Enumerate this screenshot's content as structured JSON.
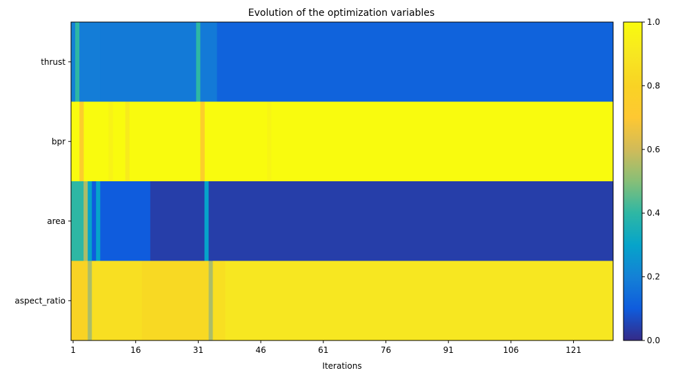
{
  "chart_data": {
    "type": "heatmap",
    "title": "Evolution of the optimization variables",
    "xlabel": "Iterations",
    "ylabel": "",
    "rows": [
      "thrust",
      "bpr",
      "area",
      "aspect_ratio"
    ],
    "x_range": [
      1,
      130
    ],
    "xticks": [
      1,
      16,
      31,
      46,
      61,
      76,
      91,
      106,
      121
    ],
    "colorbar": {
      "range": [
        0,
        1
      ],
      "ticks": [
        "0.0",
        "0.2",
        "0.4",
        "0.6",
        "0.8",
        "1.0"
      ]
    },
    "grid": false,
    "baseline": [
      0.12,
      1.0,
      0.04,
      0.9
    ],
    "segments": [
      [
        {
          "from": 1,
          "to": 1,
          "value": 0.2
        },
        {
          "from": 2,
          "to": 2,
          "value": 0.4
        },
        {
          "from": 3,
          "to": 7,
          "value": 0.19
        },
        {
          "from": 8,
          "to": 30,
          "value": 0.18
        },
        {
          "from": 31,
          "to": 31,
          "value": 0.4
        },
        {
          "from": 32,
          "to": 35,
          "value": 0.18
        },
        {
          "from": 36,
          "to": 130,
          "value": 0.12
        }
      ],
      [
        {
          "from": 3,
          "to": 3,
          "value": 0.75
        },
        {
          "from": 10,
          "to": 10,
          "value": 0.96
        },
        {
          "from": 14,
          "to": 14,
          "value": 0.92
        },
        {
          "from": 32,
          "to": 32,
          "value": 0.75
        },
        {
          "from": 48,
          "to": 48,
          "value": 0.97
        }
      ],
      [
        {
          "from": 1,
          "to": 3,
          "value": 0.4
        },
        {
          "from": 4,
          "to": 4,
          "value": 0.55
        },
        {
          "from": 5,
          "to": 5,
          "value": 0.3
        },
        {
          "from": 6,
          "to": 6,
          "value": 0.1
        },
        {
          "from": 7,
          "to": 7,
          "value": 0.3
        },
        {
          "from": 8,
          "to": 19,
          "value": 0.1
        },
        {
          "from": 20,
          "to": 32,
          "value": 0.04
        },
        {
          "from": 33,
          "to": 33,
          "value": 0.3
        },
        {
          "from": 34,
          "to": 130,
          "value": 0.04
        }
      ],
      [
        {
          "from": 1,
          "to": 4,
          "value": 0.8
        },
        {
          "from": 5,
          "to": 5,
          "value": 0.55
        },
        {
          "from": 6,
          "to": 17,
          "value": 0.86
        },
        {
          "from": 18,
          "to": 33,
          "value": 0.83
        },
        {
          "from": 34,
          "to": 34,
          "value": 0.55
        },
        {
          "from": 35,
          "to": 37,
          "value": 0.86
        },
        {
          "from": 38,
          "to": 130,
          "value": 0.9
        }
      ]
    ]
  }
}
